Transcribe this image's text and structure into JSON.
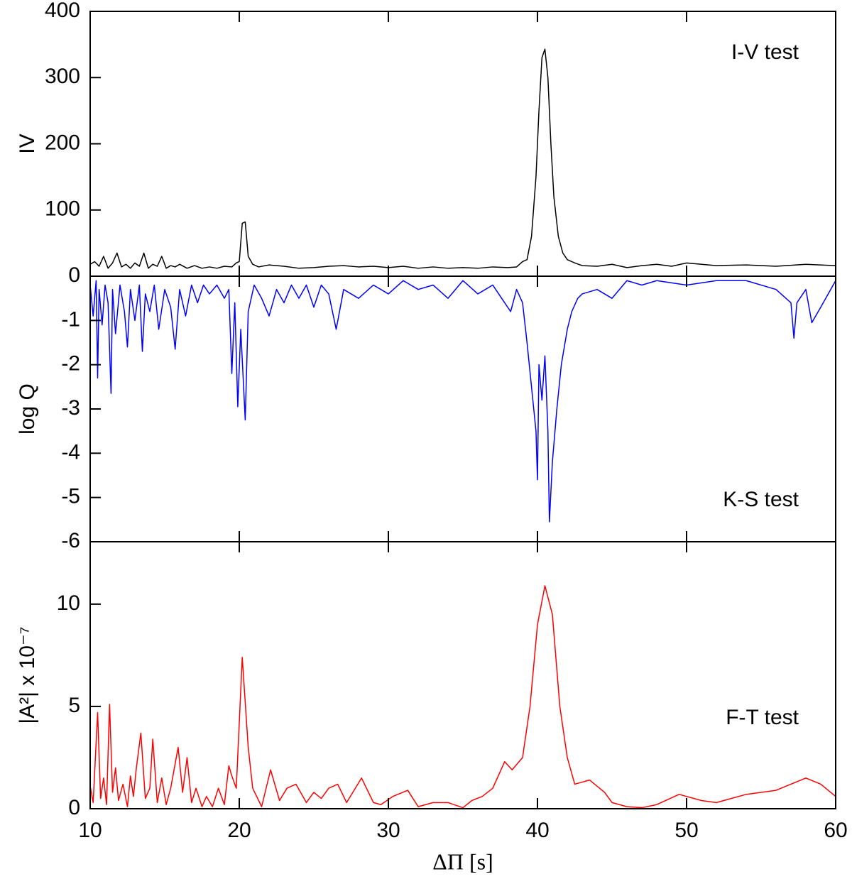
{
  "chart_data": [
    {
      "type": "line",
      "ylabel": "IV",
      "annotation": "I-V test",
      "xlim": [
        10,
        60
      ],
      "xticks": [
        10,
        20,
        30,
        40,
        50,
        60
      ],
      "ylim": [
        0,
        400
      ],
      "yticks": [
        0,
        100,
        200,
        300,
        400
      ],
      "series": [
        {
          "name": "I-V test",
          "color": "#000000",
          "x": [
            10,
            10.3,
            10.6,
            10.9,
            11.2,
            11.5,
            11.8,
            12.1,
            12.4,
            12.7,
            13,
            13.3,
            13.6,
            13.9,
            14.2,
            14.5,
            14.8,
            15.1,
            15.4,
            15.7,
            16,
            16.5,
            17,
            17.5,
            18,
            18.5,
            19,
            19.5,
            19.8,
            20,
            20.2,
            20.4,
            20.6,
            20.9,
            21.3,
            22,
            23,
            24,
            25,
            26,
            27,
            28,
            29,
            30,
            31,
            32,
            33,
            34,
            35,
            36,
            37,
            38,
            38.6,
            39,
            39.3,
            39.6,
            39.9,
            40.1,
            40.3,
            40.5,
            40.7,
            40.9,
            41.1,
            41.4,
            41.7,
            42,
            42.5,
            43,
            44,
            45,
            46,
            47,
            48,
            49,
            50,
            52,
            54,
            56,
            58,
            60
          ],
          "values": [
            18,
            22,
            15,
            30,
            12,
            20,
            35,
            14,
            18,
            12,
            20,
            15,
            35,
            12,
            18,
            15,
            30,
            12,
            16,
            14,
            18,
            12,
            16,
            12,
            14,
            12,
            15,
            14,
            20,
            22,
            80,
            82,
            30,
            18,
            14,
            17,
            15,
            12,
            13,
            15,
            16,
            14,
            15,
            13,
            15,
            12,
            14,
            12,
            13,
            12,
            14,
            13,
            14,
            22,
            25,
            60,
            150,
            250,
            330,
            343,
            300,
            200,
            120,
            60,
            35,
            25,
            20,
            16,
            15,
            18,
            13,
            16,
            18,
            15,
            20,
            16,
            17,
            15,
            18,
            16
          ]
        }
      ]
    },
    {
      "type": "line",
      "ylabel": "log Q",
      "annotation": "K-S test",
      "xlim": [
        10,
        60
      ],
      "xticks": [
        10,
        20,
        30,
        40,
        50,
        60
      ],
      "ylim": [
        -6,
        0
      ],
      "yticks": [
        -1,
        -2,
        -3,
        -4,
        -5,
        -6
      ],
      "series": [
        {
          "name": "K-S test",
          "color": "#0000ff",
          "x": [
            10,
            10.2,
            10.4,
            10.5,
            10.6,
            10.8,
            11,
            11.2,
            11.4,
            11.5,
            11.7,
            12,
            12.3,
            12.5,
            12.7,
            13,
            13.3,
            13.5,
            13.7,
            14,
            14.3,
            14.6,
            15,
            15.4,
            15.7,
            16,
            16.4,
            16.8,
            17.2,
            17.6,
            18,
            18.5,
            19,
            19.3,
            19.5,
            19.7,
            19.9,
            20.1,
            20.4,
            20.6,
            21,
            21.5,
            22,
            22.5,
            23,
            23.5,
            24,
            24.5,
            25,
            25.5,
            26,
            26.5,
            27,
            28,
            29,
            30,
            31,
            32,
            33,
            34,
            35,
            36,
            37,
            37.6,
            38.2,
            38.6,
            39,
            39.3,
            39.6,
            39.9,
            40,
            40.1,
            40.3,
            40.5,
            40.7,
            40.8,
            41,
            41.3,
            41.6,
            42,
            42.3,
            42.7,
            43,
            44,
            45,
            46,
            47,
            48,
            50,
            52,
            54,
            56,
            57,
            57.2,
            57.4,
            58,
            58.4,
            59,
            60
          ],
          "values": [
            -0.2,
            -0.9,
            -0.1,
            -2.3,
            -0.3,
            -1.1,
            -0.2,
            -0.6,
            -2.65,
            -0.3,
            -1.3,
            -0.2,
            -0.8,
            -1.6,
            -0.3,
            -1.0,
            -0.2,
            -1.7,
            -0.4,
            -0.8,
            -0.2,
            -1.2,
            -0.3,
            -0.7,
            -1.65,
            -0.3,
            -0.9,
            -0.2,
            -0.6,
            -0.2,
            -0.4,
            -0.2,
            -0.5,
            -0.3,
            -2.2,
            -0.6,
            -2.95,
            -1.2,
            -3.25,
            -0.8,
            -0.2,
            -0.5,
            -0.9,
            -0.3,
            -0.6,
            -0.2,
            -0.5,
            -0.2,
            -0.7,
            -0.2,
            -0.4,
            -1.2,
            -0.3,
            -0.5,
            -0.2,
            -0.4,
            -0.1,
            -0.3,
            -0.2,
            -0.5,
            -0.1,
            -0.4,
            -0.2,
            -0.5,
            -0.8,
            -0.3,
            -0.6,
            -1.5,
            -2.5,
            -3.5,
            -4.6,
            -2.0,
            -2.8,
            -1.8,
            -3.5,
            -5.55,
            -4.2,
            -3.0,
            -2.0,
            -1.2,
            -0.8,
            -0.5,
            -0.4,
            -0.3,
            -0.5,
            -0.1,
            -0.2,
            -0.1,
            -0.2,
            -0.1,
            -0.1,
            -0.3,
            -0.6,
            -1.4,
            -0.6,
            -0.3,
            -1.05,
            -0.7,
            -0.1
          ]
        }
      ]
    },
    {
      "type": "line",
      "ylabel": "|A²| x 10⁻⁷",
      "xlabel": "ΔΠ [s]",
      "annotation": "F-T test",
      "xlim": [
        10,
        60
      ],
      "xticks": [
        10,
        20,
        30,
        40,
        50,
        60
      ],
      "ylim": [
        0,
        13.05
      ],
      "yticks": [
        0,
        5,
        10
      ],
      "series": [
        {
          "name": "F-T test",
          "color": "#ff0000",
          "x": [
            10,
            10.2,
            10.5,
            10.7,
            10.9,
            11.1,
            11.3,
            11.5,
            11.7,
            11.9,
            12.2,
            12.5,
            12.7,
            12.9,
            13.1,
            13.4,
            13.7,
            14,
            14.2,
            14.5,
            14.8,
            15.1,
            15.4,
            15.9,
            16.2,
            16.5,
            16.8,
            17.1,
            17.5,
            17.8,
            18.2,
            18.6,
            19,
            19.3,
            19.5,
            19.8,
            20.2,
            20.6,
            20.9,
            21.5,
            22.1,
            22.7,
            23.2,
            23.8,
            24.5,
            25,
            25.5,
            26,
            26.6,
            27.2,
            28.2,
            29,
            29.5,
            30.3,
            31.3,
            32,
            33,
            34,
            35,
            35.6,
            36.3,
            37,
            37.8,
            38.3,
            39,
            39.5,
            40,
            40.5,
            41,
            41.5,
            42,
            42.5,
            43,
            43.5,
            44,
            44.5,
            45,
            46,
            47,
            48,
            49.5,
            51,
            52,
            54,
            56,
            58,
            59,
            60
          ],
          "values": [
            1.1,
            0.3,
            4.7,
            0.5,
            1.5,
            0.2,
            5.1,
            0.8,
            2.0,
            0.4,
            1.2,
            0.1,
            1.6,
            0.6,
            2.0,
            3.7,
            0.5,
            1.0,
            3.4,
            0.3,
            1.5,
            0.2,
            1.0,
            3.0,
            0.8,
            2.5,
            0.3,
            1.0,
            0.1,
            0.6,
            0.1,
            1.0,
            0.2,
            2.1,
            1.6,
            1.0,
            7.4,
            3.0,
            1.0,
            0.1,
            1.9,
            0.4,
            1.0,
            1.2,
            0.3,
            0.8,
            0.5,
            1.0,
            1.2,
            0.3,
            1.5,
            0.3,
            0.2,
            0.6,
            0.9,
            0.1,
            0.3,
            0.3,
            0.05,
            0.4,
            0.6,
            1.0,
            2.3,
            1.9,
            2.5,
            5.0,
            9.0,
            10.9,
            9.5,
            5.0,
            2.5,
            1.2,
            1.3,
            1.4,
            1.1,
            0.8,
            0.3,
            0.1,
            0.05,
            0.2,
            0.7,
            0.4,
            0.3,
            0.7,
            0.9,
            1.5,
            1.2,
            0.6
          ]
        }
      ]
    }
  ]
}
